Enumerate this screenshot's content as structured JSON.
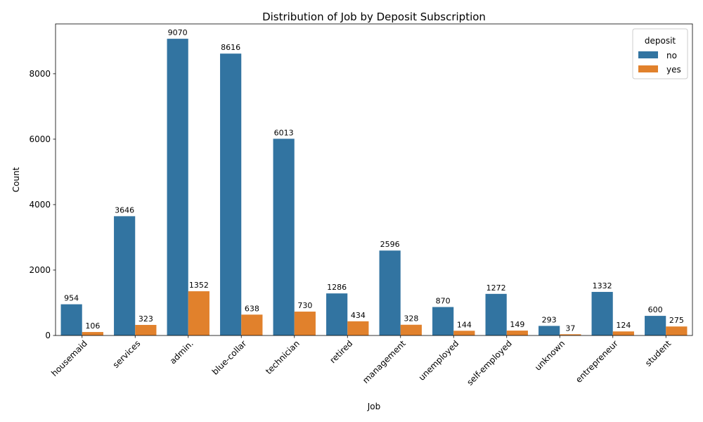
{
  "chart_data": {
    "type": "bar",
    "title": "Distribution of Job by Deposit Subscription",
    "xlabel": "Job",
    "ylabel": "Count",
    "categories": [
      "housemaid",
      "services",
      "admin.",
      "blue-collar",
      "technician",
      "retired",
      "management",
      "unemployed",
      "self-employed",
      "unknown",
      "entrepreneur",
      "student"
    ],
    "series": [
      {
        "name": "no",
        "color": "#3274a1",
        "values": [
          954,
          3646,
          9070,
          8616,
          6013,
          1286,
          2596,
          870,
          1272,
          293,
          1332,
          600
        ]
      },
      {
        "name": "yes",
        "color": "#e1812c",
        "values": [
          106,
          323,
          1352,
          638,
          730,
          434,
          328,
          144,
          149,
          37,
          124,
          275
        ]
      }
    ],
    "yticks": [
      0,
      2000,
      4000,
      6000,
      8000
    ],
    "ylim": [
      0,
      9523.5
    ],
    "legend": {
      "title": "deposit",
      "placement": "top-right"
    },
    "grid": false
  }
}
